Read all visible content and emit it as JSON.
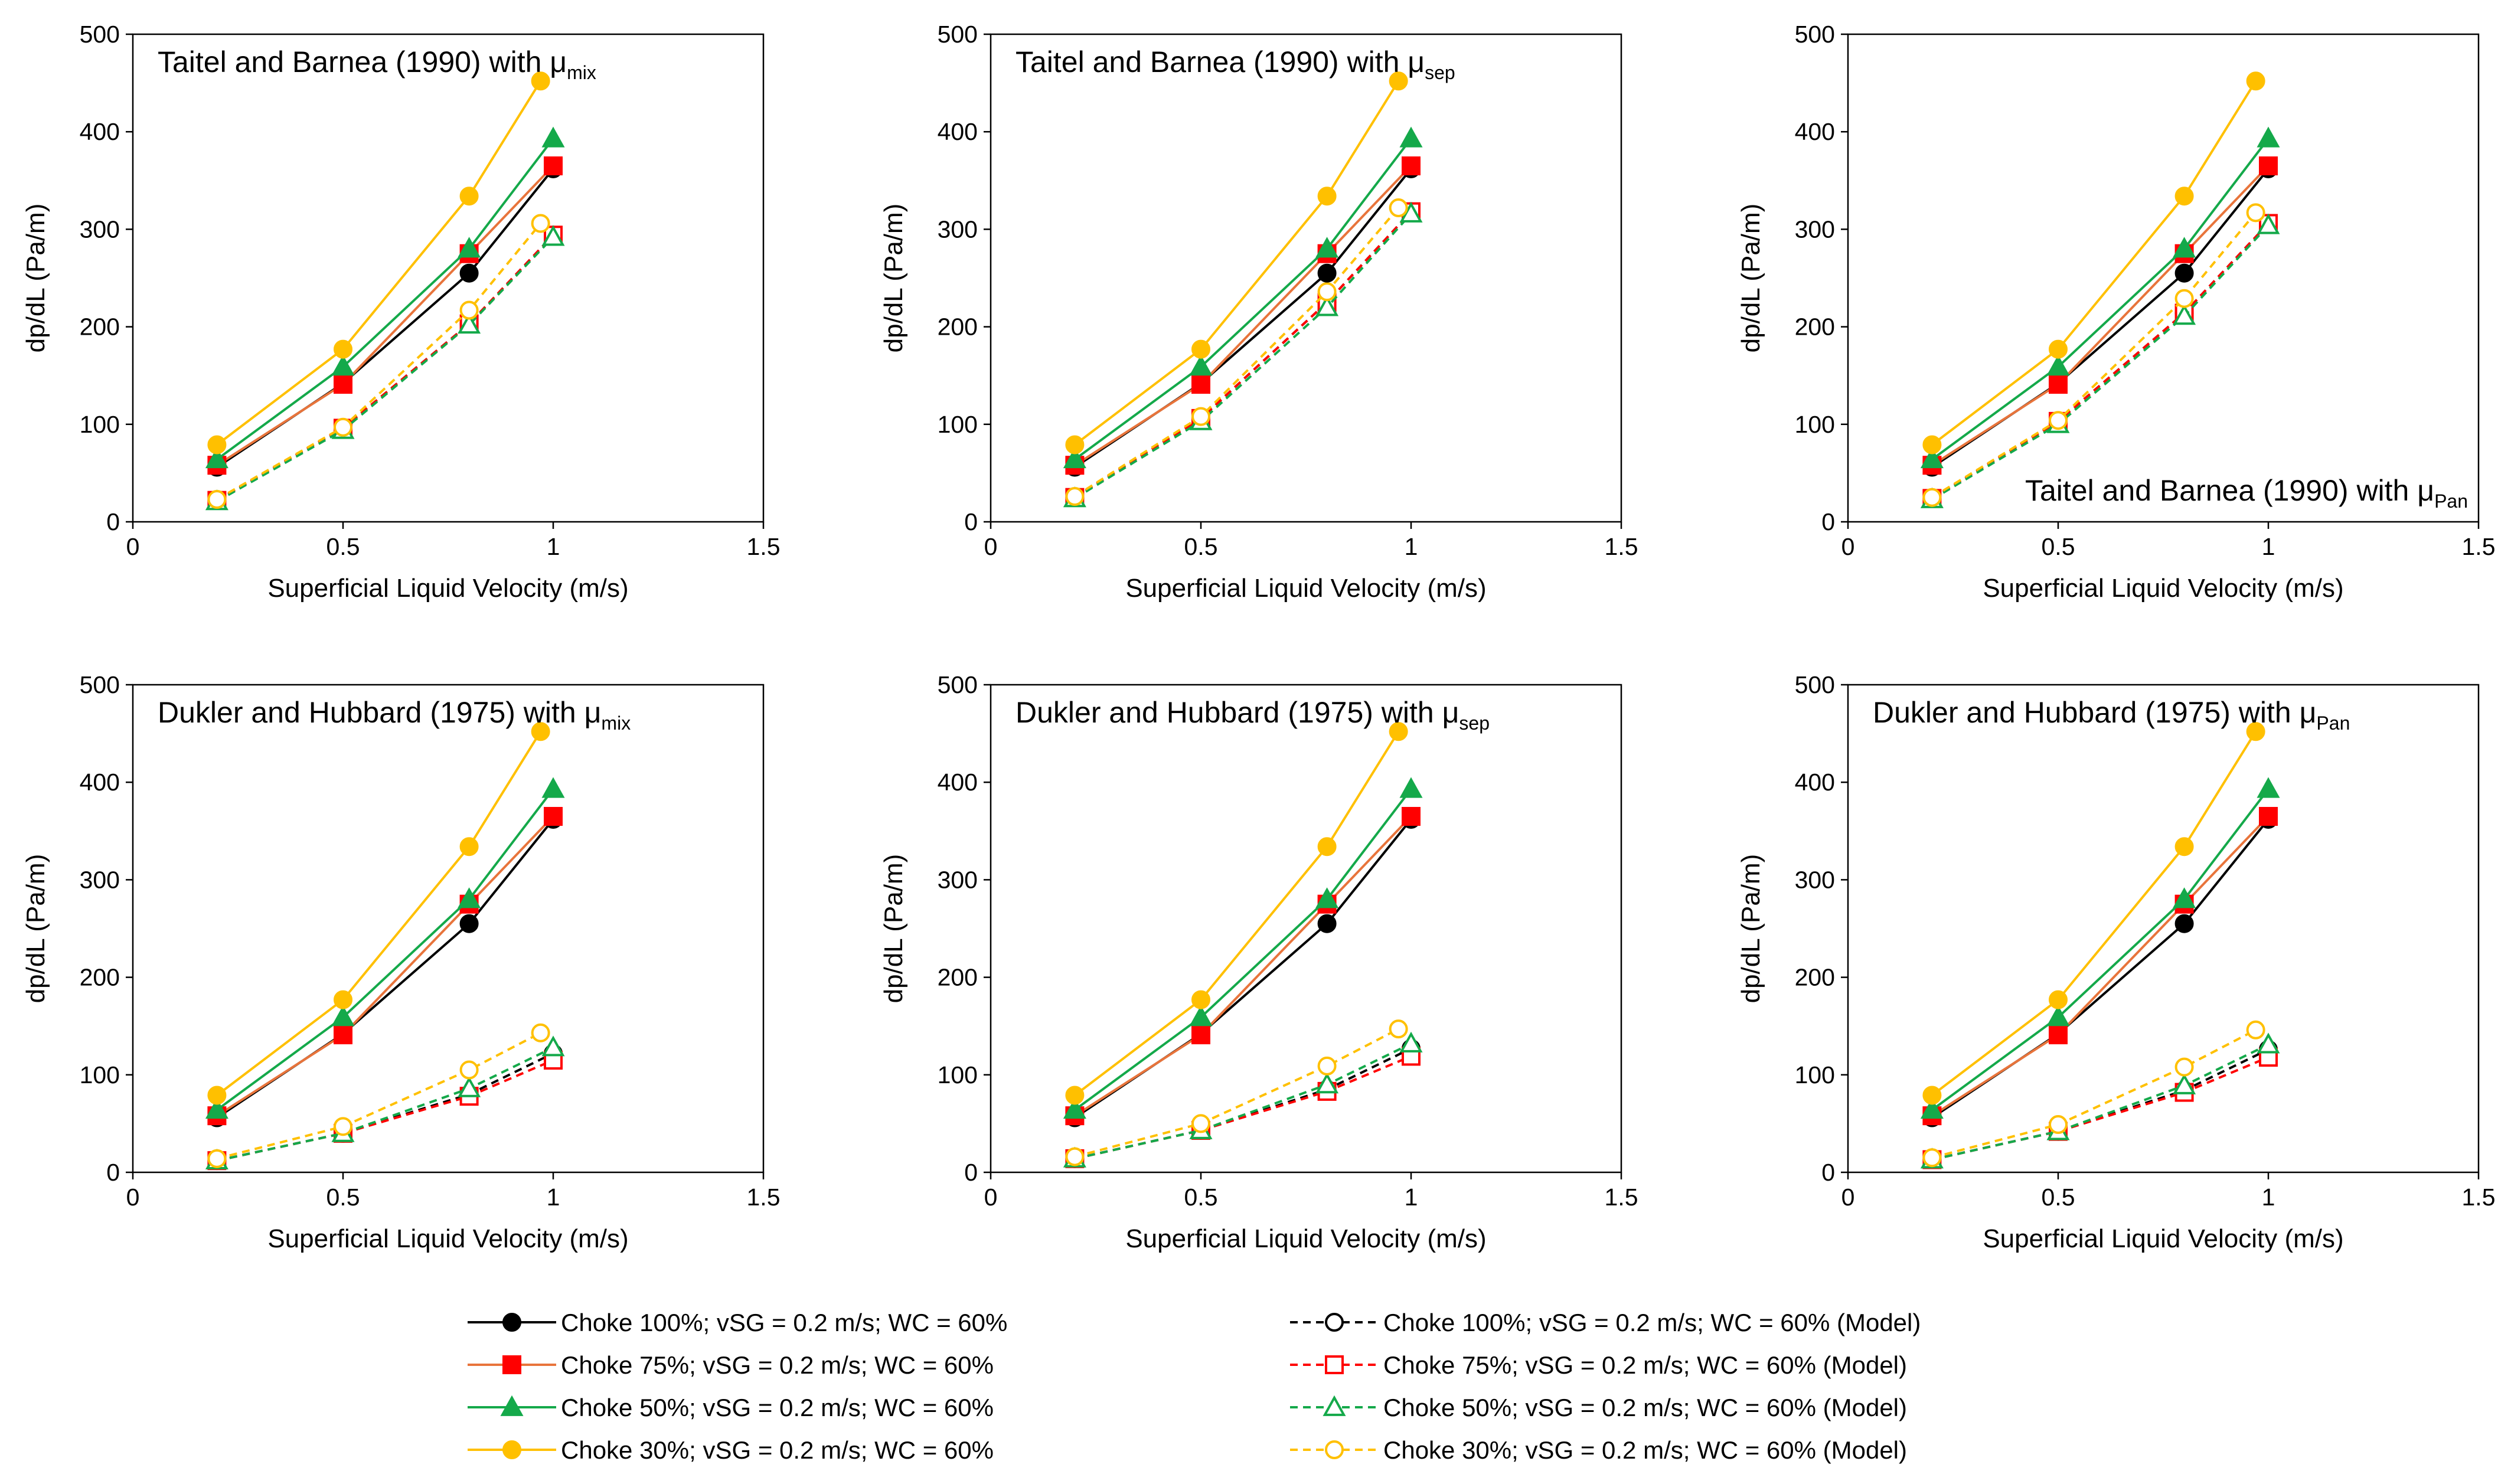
{
  "colors": {
    "choke100": "#000000",
    "choke75": "#E8743B",
    "choke50": "#14A94A",
    "choke30": "#FFC000",
    "redMarker": "#FF0000"
  },
  "legend": {
    "items": [
      {
        "key": "s100",
        "label": "Choke 100%; vSG = 0.2 m/s; WC = 60%",
        "color": "#000000",
        "marker": "circle",
        "filled": true,
        "dash": false
      },
      {
        "key": "s75",
        "label": "Choke 75%; vSG = 0.2 m/s; WC = 60%",
        "color": "#E8743B",
        "markerColor": "#FF0000",
        "marker": "square",
        "filled": true,
        "dash": false
      },
      {
        "key": "s50",
        "label": "Choke 50%; vSG = 0.2 m/s; WC = 60%",
        "color": "#14A94A",
        "marker": "triangle",
        "filled": true,
        "dash": false
      },
      {
        "key": "s30",
        "label": "Choke 30%; vSG = 0.2 m/s; WC = 60%",
        "color": "#FFC000",
        "marker": "circle",
        "filled": true,
        "dash": false
      },
      {
        "key": "m100",
        "label": "Choke 100%; vSG = 0.2 m/s; WC = 60% (Model)",
        "color": "#000000",
        "marker": "circle",
        "filled": false,
        "dash": true
      },
      {
        "key": "m75",
        "label": "Choke 75%; vSG = 0.2 m/s; WC = 60% (Model)",
        "color": "#FF0000",
        "marker": "square",
        "filled": false,
        "dash": true
      },
      {
        "key": "m50",
        "label": "Choke 50%; vSG = 0.2 m/s; WC = 60% (Model)",
        "color": "#14A94A",
        "marker": "triangle",
        "filled": false,
        "dash": true
      },
      {
        "key": "m30",
        "label": "Choke 30%; vSG = 0.2 m/s; WC = 60% (Model)",
        "color": "#FFC000",
        "marker": "circle",
        "filled": false,
        "dash": true
      }
    ]
  },
  "chart_data": [
    {
      "type": "line",
      "title_main": "Taitel and Barnea (1990) with μ",
      "title_sub": "mix",
      "title_position": "top-left",
      "xlabel": "Superficial Liquid Velocity (m/s)",
      "ylabel": "dp/dL (Pa/m)",
      "xlim": [
        0,
        1.5
      ],
      "ylim": [
        0,
        500
      ],
      "xticks": [
        0,
        0.5,
        1,
        1.5
      ],
      "xtick_labels": [
        "0",
        "0.5",
        "1",
        "1.5"
      ],
      "yticks": [
        0,
        100,
        200,
        300,
        400,
        500
      ],
      "ytick_labels": [
        "0",
        "100",
        "200",
        "300",
        "400",
        "500"
      ],
      "series": [
        {
          "key": "s100",
          "x": [
            0.2,
            0.5,
            0.8,
            1.0
          ],
          "y": [
            56,
            142,
            255,
            362
          ]
        },
        {
          "key": "s75",
          "x": [
            0.2,
            0.5,
            0.8,
            1.0
          ],
          "y": [
            58,
            141,
            275,
            365
          ]
        },
        {
          "key": "s50",
          "x": [
            0.2,
            0.5,
            0.8,
            1.0
          ],
          "y": [
            64,
            159,
            280,
            393
          ]
        },
        {
          "key": "s30",
          "x": [
            0.2,
            0.5,
            0.8,
            0.97
          ],
          "y": [
            79,
            177,
            334,
            452
          ]
        },
        {
          "key": "m100",
          "x": [
            0.2,
            0.5,
            0.8,
            1.0
          ],
          "y": [
            22,
            96,
            203,
            294
          ]
        },
        {
          "key": "m75",
          "x": [
            0.2,
            0.5,
            0.8,
            1.0
          ],
          "y": [
            22,
            96,
            203,
            294
          ]
        },
        {
          "key": "m50",
          "x": [
            0.2,
            0.5,
            0.8,
            1.0
          ],
          "y": [
            21,
            94,
            202,
            292
          ]
        },
        {
          "key": "m30",
          "x": [
            0.2,
            0.5,
            0.8,
            0.97
          ],
          "y": [
            23,
            97,
            217,
            306
          ]
        }
      ]
    },
    {
      "type": "line",
      "title_main": "Taitel and Barnea (1990) with μ",
      "title_sub": "sep",
      "title_position": "top-left",
      "xlabel": "Superficial Liquid Velocity (m/s)",
      "ylabel": "dp/dL (Pa/m)",
      "xlim": [
        0,
        1.5
      ],
      "ylim": [
        0,
        500
      ],
      "xticks": [
        0,
        0.5,
        1,
        1.5
      ],
      "xtick_labels": [
        "0",
        "0.5",
        "1",
        "1.5"
      ],
      "yticks": [
        0,
        100,
        200,
        300,
        400,
        500
      ],
      "ytick_labels": [
        "0",
        "100",
        "200",
        "300",
        "400",
        "500"
      ],
      "series": [
        {
          "key": "s100",
          "x": [
            0.2,
            0.5,
            0.8,
            1.0
          ],
          "y": [
            56,
            142,
            255,
            362
          ]
        },
        {
          "key": "s75",
          "x": [
            0.2,
            0.5,
            0.8,
            1.0
          ],
          "y": [
            58,
            141,
            275,
            365
          ]
        },
        {
          "key": "s50",
          "x": [
            0.2,
            0.5,
            0.8,
            1.0
          ],
          "y": [
            64,
            159,
            280,
            393
          ]
        },
        {
          "key": "s30",
          "x": [
            0.2,
            0.5,
            0.8,
            0.97
          ],
          "y": [
            79,
            177,
            334,
            452
          ]
        },
        {
          "key": "m100",
          "x": [
            0.2,
            0.5,
            0.8,
            1.0
          ],
          "y": [
            25,
            106,
            225,
            318
          ]
        },
        {
          "key": "m75",
          "x": [
            0.2,
            0.5,
            0.8,
            1.0
          ],
          "y": [
            25,
            106,
            225,
            318
          ]
        },
        {
          "key": "m50",
          "x": [
            0.2,
            0.5,
            0.8,
            1.0
          ],
          "y": [
            24,
            103,
            220,
            316
          ]
        },
        {
          "key": "m30",
          "x": [
            0.2,
            0.5,
            0.8,
            0.97
          ],
          "y": [
            26,
            108,
            236,
            322
          ]
        }
      ]
    },
    {
      "type": "line",
      "title_main": "Taitel and Barnea (1990) with μ",
      "title_sub": "Pan",
      "title_position": "bottom-right",
      "xlabel": "Superficial Liquid Velocity (m/s)",
      "ylabel": "dp/dL (Pa/m)",
      "xlim": [
        0,
        1.5
      ],
      "ylim": [
        0,
        500
      ],
      "xticks": [
        0,
        0.5,
        1,
        1.5
      ],
      "xtick_labels": [
        "0",
        "0.5",
        "1",
        "1.5"
      ],
      "yticks": [
        0,
        100,
        200,
        300,
        400,
        500
      ],
      "ytick_labels": [
        "0",
        "100",
        "200",
        "300",
        "400",
        "500"
      ],
      "series": [
        {
          "key": "s100",
          "x": [
            0.2,
            0.5,
            0.8,
            1.0
          ],
          "y": [
            56,
            142,
            255,
            362
          ]
        },
        {
          "key": "s75",
          "x": [
            0.2,
            0.5,
            0.8,
            1.0
          ],
          "y": [
            58,
            141,
            275,
            365
          ]
        },
        {
          "key": "s50",
          "x": [
            0.2,
            0.5,
            0.8,
            1.0
          ],
          "y": [
            64,
            159,
            280,
            393
          ]
        },
        {
          "key": "s30",
          "x": [
            0.2,
            0.5,
            0.8,
            0.97
          ],
          "y": [
            79,
            177,
            334,
            452
          ]
        },
        {
          "key": "m100",
          "x": [
            0.2,
            0.5,
            0.8,
            1.0
          ],
          "y": [
            24,
            103,
            214,
            306
          ]
        },
        {
          "key": "m75",
          "x": [
            0.2,
            0.5,
            0.8,
            1.0
          ],
          "y": [
            24,
            103,
            214,
            306
          ]
        },
        {
          "key": "m50",
          "x": [
            0.2,
            0.5,
            0.8,
            1.0
          ],
          "y": [
            23,
            100,
            211,
            304
          ]
        },
        {
          "key": "m30",
          "x": [
            0.2,
            0.5,
            0.8,
            0.97
          ],
          "y": [
            25,
            104,
            229,
            317
          ]
        }
      ]
    },
    {
      "type": "line",
      "title_main": "Dukler and Hubbard (1975) with μ",
      "title_sub": "mix",
      "title_position": "top-left",
      "xlabel": "Superficial Liquid Velocity (m/s)",
      "ylabel": "dp/dL (Pa/m)",
      "xlim": [
        0,
        1.5
      ],
      "ylim": [
        0,
        500
      ],
      "xticks": [
        0,
        0.5,
        1,
        1.5
      ],
      "xtick_labels": [
        "0",
        "0.5",
        "1",
        "1.5"
      ],
      "yticks": [
        0,
        100,
        200,
        300,
        400,
        500
      ],
      "ytick_labels": [
        "0",
        "100",
        "200",
        "300",
        "400",
        "500"
      ],
      "series": [
        {
          "key": "s100",
          "x": [
            0.2,
            0.5,
            0.8,
            1.0
          ],
          "y": [
            56,
            142,
            255,
            362
          ]
        },
        {
          "key": "s75",
          "x": [
            0.2,
            0.5,
            0.8,
            1.0
          ],
          "y": [
            58,
            141,
            275,
            365
          ]
        },
        {
          "key": "s50",
          "x": [
            0.2,
            0.5,
            0.8,
            1.0
          ],
          "y": [
            64,
            159,
            280,
            393
          ]
        },
        {
          "key": "s30",
          "x": [
            0.2,
            0.5,
            0.8,
            0.97
          ],
          "y": [
            79,
            177,
            334,
            452
          ]
        },
        {
          "key": "m100",
          "x": [
            0.2,
            0.5,
            0.8,
            1.0
          ],
          "y": [
            12,
            40,
            80,
            122
          ]
        },
        {
          "key": "m75",
          "x": [
            0.2,
            0.5,
            0.8,
            1.0
          ],
          "y": [
            12,
            40,
            78,
            115
          ]
        },
        {
          "key": "m50",
          "x": [
            0.2,
            0.5,
            0.8,
            1.0
          ],
          "y": [
            12,
            40,
            86,
            128
          ]
        },
        {
          "key": "m30",
          "x": [
            0.2,
            0.5,
            0.8,
            0.97
          ],
          "y": [
            14,
            47,
            105,
            143
          ]
        }
      ]
    },
    {
      "type": "line",
      "title_main": "Dukler and Hubbard (1975) with μ",
      "title_sub": "sep",
      "title_position": "top-left",
      "xlabel": "Superficial Liquid Velocity (m/s)",
      "ylabel": "dp/dL (Pa/m)",
      "xlim": [
        0,
        1.5
      ],
      "ylim": [
        0,
        500
      ],
      "xticks": [
        0,
        0.5,
        1,
        1.5
      ],
      "xtick_labels": [
        "0",
        "0.5",
        "1",
        "1.5"
      ],
      "yticks": [
        0,
        100,
        200,
        300,
        400,
        500
      ],
      "ytick_labels": [
        "0",
        "100",
        "200",
        "300",
        "400",
        "500"
      ],
      "series": [
        {
          "key": "s100",
          "x": [
            0.2,
            0.5,
            0.8,
            1.0
          ],
          "y": [
            56,
            142,
            255,
            362
          ]
        },
        {
          "key": "s75",
          "x": [
            0.2,
            0.5,
            0.8,
            1.0
          ],
          "y": [
            58,
            141,
            275,
            365
          ]
        },
        {
          "key": "s50",
          "x": [
            0.2,
            0.5,
            0.8,
            1.0
          ],
          "y": [
            64,
            159,
            280,
            393
          ]
        },
        {
          "key": "s30",
          "x": [
            0.2,
            0.5,
            0.8,
            0.97
          ],
          "y": [
            79,
            177,
            334,
            452
          ]
        },
        {
          "key": "m100",
          "x": [
            0.2,
            0.5,
            0.8,
            1.0
          ],
          "y": [
            14,
            43,
            85,
            127
          ]
        },
        {
          "key": "m75",
          "x": [
            0.2,
            0.5,
            0.8,
            1.0
          ],
          "y": [
            14,
            43,
            83,
            119
          ]
        },
        {
          "key": "m50",
          "x": [
            0.2,
            0.5,
            0.8,
            1.0
          ],
          "y": [
            14,
            43,
            90,
            132
          ]
        },
        {
          "key": "m30",
          "x": [
            0.2,
            0.5,
            0.8,
            0.97
          ],
          "y": [
            16,
            50,
            109,
            147
          ]
        }
      ]
    },
    {
      "type": "line",
      "title_main": "Dukler and Hubbard (1975) with μ",
      "title_sub": "Pan",
      "title_position": "top-left",
      "xlabel": "Superficial Liquid Velocity (m/s)",
      "ylabel": "dp/dL (Pa/m)",
      "xlim": [
        0,
        1.5
      ],
      "ylim": [
        0,
        500
      ],
      "xticks": [
        0,
        0.5,
        1,
        1.5
      ],
      "xtick_labels": [
        "0",
        "0.5",
        "1",
        "1.5"
      ],
      "yticks": [
        0,
        100,
        200,
        300,
        400,
        500
      ],
      "ytick_labels": [
        "0",
        "100",
        "200",
        "300",
        "400",
        "500"
      ],
      "series": [
        {
          "key": "s100",
          "x": [
            0.2,
            0.5,
            0.8,
            1.0
          ],
          "y": [
            56,
            142,
            255,
            362
          ]
        },
        {
          "key": "s75",
          "x": [
            0.2,
            0.5,
            0.8,
            1.0
          ],
          "y": [
            58,
            141,
            275,
            365
          ]
        },
        {
          "key": "s50",
          "x": [
            0.2,
            0.5,
            0.8,
            1.0
          ],
          "y": [
            64,
            159,
            280,
            393
          ]
        },
        {
          "key": "s30",
          "x": [
            0.2,
            0.5,
            0.8,
            0.97
          ],
          "y": [
            79,
            177,
            334,
            452
          ]
        },
        {
          "key": "m100",
          "x": [
            0.2,
            0.5,
            0.8,
            1.0
          ],
          "y": [
            13,
            42,
            84,
            126
          ]
        },
        {
          "key": "m75",
          "x": [
            0.2,
            0.5,
            0.8,
            1.0
          ],
          "y": [
            13,
            42,
            82,
            118
          ]
        },
        {
          "key": "m50",
          "x": [
            0.2,
            0.5,
            0.8,
            1.0
          ],
          "y": [
            13,
            42,
            89,
            131
          ]
        },
        {
          "key": "m30",
          "x": [
            0.2,
            0.5,
            0.8,
            0.97
          ],
          "y": [
            15,
            49,
            108,
            146
          ]
        }
      ]
    }
  ]
}
